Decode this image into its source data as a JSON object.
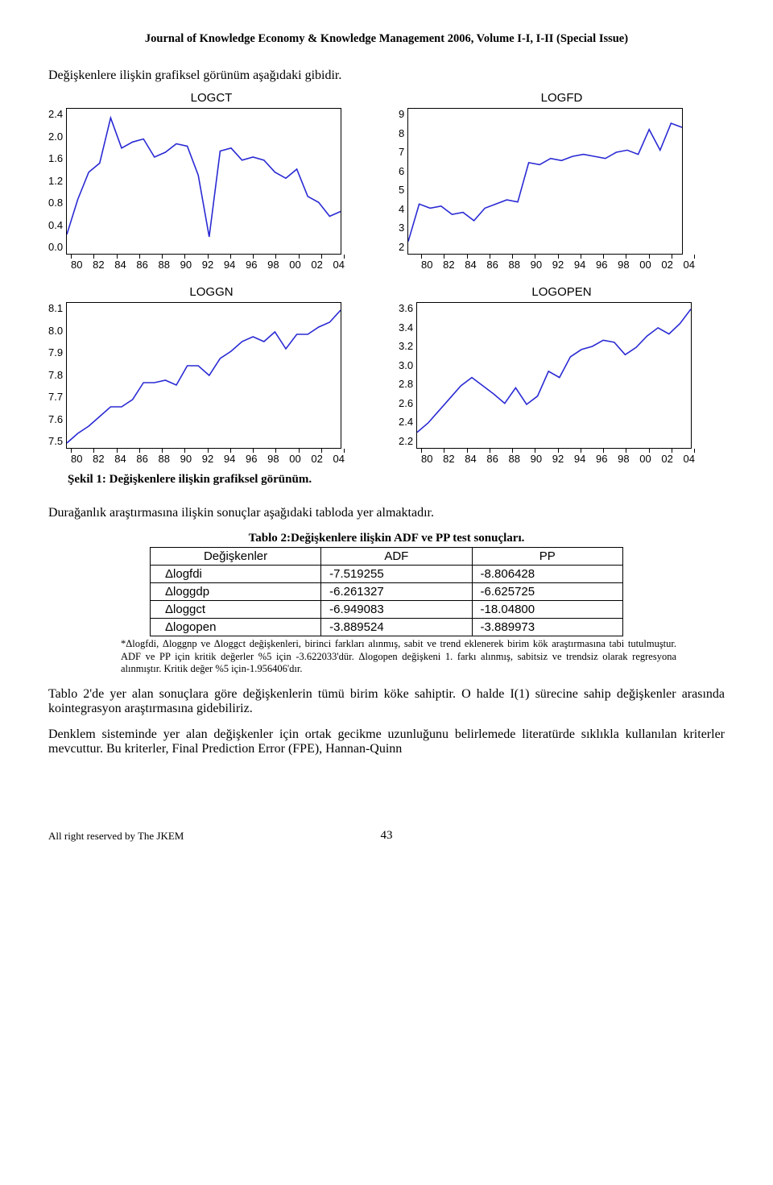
{
  "journal_header": "Journal of Knowledge Economy & Knowledge Management 2006, Volume I-I, I-II (Special Issue)",
  "intro_text": "Değişkenlere ilişkin grafiksel görünüm aşağıdaki gibidir.",
  "charts": {
    "x_ticks": [
      "80",
      "82",
      "84",
      "86",
      "88",
      "90",
      "92",
      "94",
      "96",
      "98",
      "00",
      "02",
      "04"
    ],
    "line_color": "#2a2ad4",
    "line_width": 1.6,
    "border_color": "#000000",
    "background_color": "#ffffff",
    "axis_font_family": "Arial",
    "axis_font_size": 13,
    "title_font_size": 15,
    "logct": {
      "title": "LOGCT",
      "ymin": 0.0,
      "ymax": 2.4,
      "y_ticks": [
        "2.4",
        "2.0",
        "1.6",
        "1.2",
        "0.8",
        "0.4",
        "0.0"
      ],
      "values": [
        0.32,
        0.9,
        1.35,
        1.5,
        2.25,
        1.75,
        1.85,
        1.9,
        1.6,
        1.68,
        1.82,
        1.78,
        1.3,
        0.28,
        1.7,
        1.75,
        1.55,
        1.6,
        1.55,
        1.35,
        1.25,
        1.4,
        0.95,
        0.85,
        0.62,
        0.7
      ]
    },
    "logfd": {
      "title": "LOGFD",
      "ymin": 2,
      "ymax": 9,
      "y_ticks": [
        "9",
        "8",
        "7",
        "6",
        "5",
        "4",
        "3",
        "2"
      ],
      "values": [
        2.6,
        4.4,
        4.2,
        4.3,
        3.9,
        4.0,
        3.6,
        4.2,
        4.4,
        4.6,
        4.5,
        6.4,
        6.3,
        6.6,
        6.5,
        6.7,
        6.8,
        6.7,
        6.6,
        6.9,
        7.0,
        6.8,
        8.0,
        7.0,
        8.3,
        8.1
      ]
    },
    "loggn": {
      "title": "LOGGN",
      "ymin": 7.5,
      "ymax": 8.1,
      "y_ticks": [
        "8.1",
        "8.0",
        "7.9",
        "7.8",
        "7.7",
        "7.6",
        "7.5"
      ],
      "values": [
        7.52,
        7.56,
        7.59,
        7.63,
        7.67,
        7.67,
        7.7,
        7.77,
        7.77,
        7.78,
        7.76,
        7.84,
        7.84,
        7.8,
        7.87,
        7.9,
        7.94,
        7.96,
        7.94,
        7.98,
        7.91,
        7.97,
        7.97,
        8.0,
        8.02,
        8.07
      ]
    },
    "logopen": {
      "title": "LOGOPEN",
      "ymin": 2.2,
      "ymax": 3.6,
      "y_ticks": [
        "3.6",
        "3.4",
        "3.2",
        "3.0",
        "2.8",
        "2.6",
        "2.4",
        "2.2"
      ],
      "values": [
        2.35,
        2.44,
        2.56,
        2.68,
        2.8,
        2.88,
        2.8,
        2.72,
        2.63,
        2.78,
        2.62,
        2.7,
        2.94,
        2.88,
        3.08,
        3.15,
        3.18,
        3.24,
        3.22,
        3.1,
        3.17,
        3.28,
        3.36,
        3.3,
        3.4,
        3.54
      ]
    }
  },
  "figure_caption": "Şekil 1: Değişkenlere ilişkin grafiksel görünüm.",
  "para1": "Durağanlık araştırmasına ilişkin sonuçlar aşağıdaki tabloda yer almaktadır.",
  "table": {
    "caption": "Tablo 2:Değişkenlere ilişkin ADF ve PP test sonuçları.",
    "columns": [
      "Değişkenler",
      "ADF",
      "PP"
    ],
    "rows": [
      [
        "Δlogfdi",
        "-7.519255",
        "-8.806428"
      ],
      [
        "Δloggdp",
        "-6.261327",
        "-6.625725"
      ],
      [
        "Δloggct",
        "-6.949083",
        "-18.04800"
      ],
      [
        "Δlogopen",
        "-3.889524",
        "-3.889973"
      ]
    ],
    "col_align": [
      "left",
      "left",
      "left"
    ],
    "font_family": "Arial",
    "font_size": 15,
    "border_color": "#000000"
  },
  "footnote": "*Δlogfdi, Δloggnp ve Δloggct değişkenleri, birinci farkları alınmış, sabit ve trend eklenerek birim kök araştırmasına tabi tutulmuştur. ADF ve PP için kritik değerler %5 için -3.622033'dür. Δlogopen değişkeni 1. farkı alınmış, sabitsiz ve trendsiz olarak regresyona alınmıştır. Kritik değer %5 için-1.956406'dır.",
  "para2": "Tablo 2'de yer alan sonuçlara göre değişkenlerin tümü birim köke sahiptir. O halde I(1) sürecine sahip değişkenler arasında kointegrasyon araştırmasına gidebiliriz.",
  "para3": "Denklem sisteminde yer alan değişkenler için ortak gecikme uzunluğunu belirlemede literatürde sıklıkla kullanılan kriterler mevcuttur. Bu kriterler, Final Prediction Error (FPE), Hannan-Quinn",
  "footer_left": "All right reserved by The JKEM",
  "page_number": "43"
}
